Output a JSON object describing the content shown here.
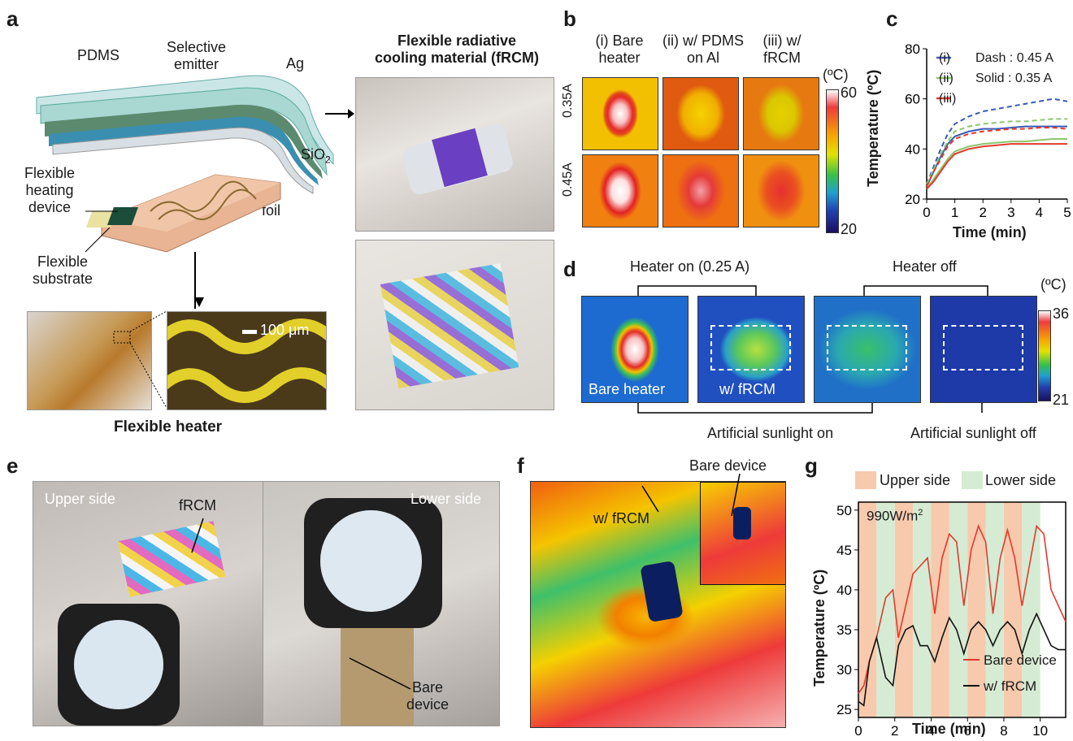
{
  "panels": {
    "a": "a",
    "b": "b",
    "c": "c",
    "d": "d",
    "e": "e",
    "f": "f",
    "g": "g"
  },
  "panel_a": {
    "pdms": "PDMS",
    "selective_emitter": "Selective\nemitter",
    "ag": "Ag",
    "sio2": "SiO",
    "sio2_sub": "2",
    "al_foil": "Al\nfoil",
    "flexible_heating_device": "Flexible\nheating\ndevice",
    "flexible_substrate": "Flexible\nsubstrate",
    "scale_bar": "100 μm",
    "flexible_heater": "Flexible heater",
    "frcm_title": "Flexible radiative\ncooling material (fRCM)"
  },
  "panel_b": {
    "columns": [
      "(i) Bare\nheater",
      "(ii) w/ PDMS\non Al",
      "(iii) w/\nfRCM"
    ],
    "rows": [
      "0.35A",
      "0.45A"
    ],
    "unit": "(ºC)",
    "scale_max": "60",
    "scale_min": "20"
  },
  "panel_c": {
    "legend": [
      "(i)",
      "(ii)",
      "(iii)"
    ],
    "note_dash": "Dash : 0.45 A",
    "note_solid": "Solid : 0.35 A",
    "ylabel": "Temperature (ºC)",
    "xlabel": "Time (min)",
    "yticks": [
      "20",
      "40",
      "60",
      "80"
    ],
    "xticks": [
      "0",
      "1",
      "2",
      "3",
      "4",
      "5"
    ]
  },
  "panel_d": {
    "heater_on": "Heater on (0.25 A)",
    "heater_off": "Heater off",
    "bare_heater": "Bare heater",
    "w_frcm": "w/ fRCM",
    "sunlight_on": "Artificial sunlight on",
    "sunlight_off": "Artificial sunlight off",
    "unit": "(ºC)",
    "scale_max": "36",
    "scale_min": "21"
  },
  "panel_e": {
    "upper": "Upper side",
    "lower": "Lower side",
    "frcm": "fRCM",
    "bare_device": "Bare\ndevice"
  },
  "panel_f": {
    "w_frcm": "w/ fRCM",
    "bare_device": "Bare device"
  },
  "panel_g": {
    "legend_upper": "Upper side",
    "legend_lower": "Lower side",
    "irradiance": "990W/m",
    "irradiance_sup": "2",
    "ylabel": "Temperature (ºC)",
    "xlabel": "Time (min)",
    "yticks": [
      "25",
      "30",
      "35",
      "40",
      "45",
      "50"
    ],
    "xticks": [
      "0",
      "2",
      "4",
      "6",
      "8",
      "10"
    ],
    "series_bare": "Bare device",
    "series_frcm": "w/ fRCM"
  },
  "colors": {
    "dash_i": "#3a5bb5",
    "line_ii": "#8cc56d",
    "line_iii": "#e23b2b",
    "upper_band": "#f7c9ad",
    "lower_band": "#d6ebd3",
    "g_red": "#e03a2f",
    "g_black": "#111111"
  },
  "chart_data": [
    {
      "type": "line",
      "title": "",
      "xlabel": "Time (min)",
      "ylabel": "Temperature (ºC)",
      "xlim": [
        0,
        5
      ],
      "ylim": [
        20,
        80
      ],
      "x": [
        0,
        0.25,
        0.5,
        0.75,
        1,
        1.5,
        2,
        2.5,
        3,
        3.5,
        4,
        4.5,
        5
      ],
      "series": [
        {
          "name": "(i)",
          "style": "solid",
          "values": [
            25,
            31,
            37,
            42,
            45,
            47,
            48,
            48,
            48.5,
            49,
            49,
            49,
            49
          ]
        },
        {
          "name": "(i)",
          "style": "dash",
          "values": [
            26,
            33,
            40,
            46,
            50,
            53,
            55,
            56,
            57,
            58,
            59,
            60,
            59
          ]
        },
        {
          "name": "(ii)",
          "style": "solid",
          "values": [
            24,
            28,
            32,
            36,
            39,
            41,
            42,
            42.5,
            43,
            43,
            43.5,
            44,
            44
          ]
        },
        {
          "name": "(ii)",
          "style": "dash",
          "values": [
            26,
            32,
            38,
            43,
            47,
            49,
            50,
            50.5,
            51,
            51,
            51.5,
            52,
            52
          ]
        },
        {
          "name": "(iii)",
          "style": "solid",
          "values": [
            24,
            27,
            31,
            35,
            38,
            40,
            41,
            41.5,
            42,
            42,
            42,
            42,
            42
          ]
        },
        {
          "name": "(iii)",
          "style": "dash",
          "values": [
            25,
            31,
            36,
            41,
            44,
            46,
            47,
            47.5,
            48,
            48,
            48.5,
            48.5,
            48
          ]
        }
      ]
    },
    {
      "type": "line",
      "title": "",
      "xlabel": "Time (min)",
      "ylabel": "Temperature (ºC)",
      "xlim": [
        0,
        11.4
      ],
      "ylim": [
        24,
        51
      ],
      "upper_side_bands": [
        [
          0,
          1
        ],
        [
          2,
          3
        ],
        [
          4,
          5
        ],
        [
          6,
          7
        ],
        [
          8,
          9
        ]
      ],
      "lower_side_bands": [
        [
          1,
          2
        ],
        [
          3,
          4
        ],
        [
          5,
          6
        ],
        [
          7,
          8
        ],
        [
          9,
          10
        ]
      ],
      "series": [
        {
          "name": "Bare device",
          "x": [
            0,
            0.3,
            0.6,
            1,
            1.5,
            1.9,
            2.2,
            2.6,
            3,
            3.4,
            3.8,
            4.2,
            4.6,
            5,
            5.4,
            5.8,
            6.2,
            6.6,
            7,
            7.4,
            7.8,
            8.2,
            8.6,
            9,
            9.4,
            9.8,
            10.2,
            10.6,
            11,
            11.4
          ],
          "values": [
            27,
            28,
            31,
            34,
            39,
            40,
            34,
            38,
            42,
            43,
            44,
            37,
            44,
            47,
            46,
            38,
            45,
            48,
            46,
            37,
            44,
            47.5,
            44,
            38,
            43,
            48,
            47,
            40,
            38,
            36
          ]
        },
        {
          "name": "w/ fRCM",
          "x": [
            0,
            0.3,
            0.6,
            1,
            1.5,
            1.9,
            2.2,
            2.6,
            3,
            3.4,
            3.8,
            4.2,
            4.6,
            5,
            5.4,
            5.8,
            6.2,
            6.6,
            7,
            7.4,
            7.8,
            8.2,
            8.6,
            9,
            9.4,
            9.8,
            10.2,
            10.6,
            11,
            11.4
          ],
          "values": [
            26,
            25.5,
            31,
            34,
            29,
            28,
            33,
            35,
            35.5,
            33,
            33,
            31,
            34,
            36.5,
            35,
            32,
            35,
            36,
            35,
            33,
            35,
            36,
            35,
            32,
            35,
            37,
            35,
            33,
            32.5,
            32.5
          ]
        }
      ]
    }
  ]
}
